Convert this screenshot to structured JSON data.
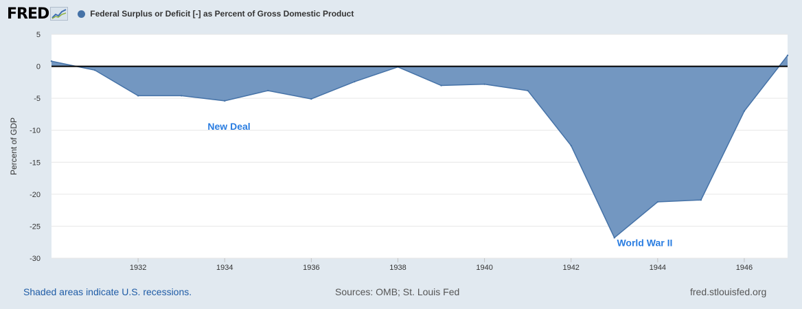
{
  "brand": {
    "logo_text": "FRED",
    "logo_icon": "trend-line-icon"
  },
  "legend": {
    "label": "Federal Surplus or Deficit [-] as Percent of Gross Domestic Product",
    "color": "#4572a7"
  },
  "footer": {
    "recession_note": "Shaded areas indicate U.S. recessions.",
    "sources": "Sources: OMB; St. Louis Fed",
    "site": "fred.stlouisfed.org"
  },
  "chart_data": {
    "type": "area",
    "title": "",
    "xlabel": "",
    "ylabel": "Percent of GDP",
    "x": [
      1930,
      1931,
      1932,
      1933,
      1934,
      1935,
      1936,
      1937,
      1938,
      1939,
      1940,
      1941,
      1942,
      1943,
      1944,
      1945,
      1946,
      1947
    ],
    "series": [
      {
        "name": "Federal Surplus or Deficit [-] as Percent of Gross Domestic Product",
        "values": [
          0.8,
          -0.6,
          -4.6,
          -4.6,
          -5.4,
          -3.8,
          -5.1,
          -2.4,
          -0.1,
          -3.0,
          -2.8,
          -3.8,
          -12.4,
          -26.8,
          -21.2,
          -20.9,
          -7.0,
          1.7
        ]
      }
    ],
    "ylim": [
      -30,
      5
    ],
    "xlim": [
      1930,
      1947
    ],
    "yticks": [
      5,
      0,
      -5,
      -10,
      -15,
      -20,
      -25,
      -30
    ],
    "xticks": [
      1932,
      1934,
      1936,
      1938,
      1940,
      1942,
      1944,
      1946
    ],
    "grid": true,
    "legend_position": "top-left",
    "annotations": [
      {
        "text": "New Deal",
        "x": 1934.1,
        "y": -9.9
      },
      {
        "text": "World War II",
        "x": 1943.7,
        "y": -28.1
      }
    ],
    "colors": {
      "fill": "#7397c1",
      "line": "#4572a7",
      "zero_line": "#000000",
      "annotation": "#2a7de1"
    }
  }
}
